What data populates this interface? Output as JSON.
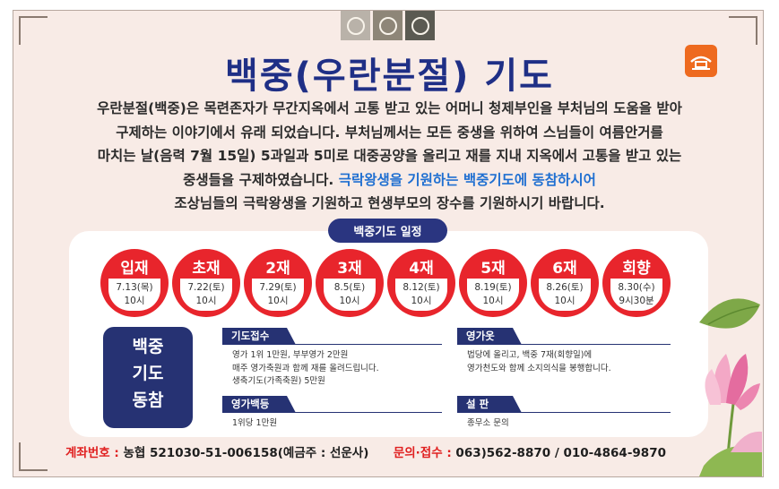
{
  "title": "백중(우란분절) 기도",
  "intro": {
    "lines": [
      "우란분절(백중)은 목련존자가 무간지옥에서 고통 받고 있는 어머니 청제부인을 부처님의 도움을 받아",
      "구제하는 이야기에서 유래 되었습니다. 부처님께서는 모든 중생을 위하여 스님들이 여름안거를",
      "마치는 날(음력 7월 15일) 5과일과 5미로 대중공양을 올리고 재를 지내 지옥에서 고통을 받고 있는"
    ],
    "line4_a": "중생들을 구제하였습니다. ",
    "line4_highlight": "극락왕생을 기원하는 백중기도에 동참하시어",
    "line5": "조상님들의 극락왕생을 기원하고 현생부모의 장수를 기원하시기 바랍니다."
  },
  "schedule": {
    "title": "백중기도 일정",
    "items": [
      {
        "name": "입재",
        "date": "7.13(목)",
        "time": "10시"
      },
      {
        "name": "초재",
        "date": "7.22(토)",
        "time": "10시"
      },
      {
        "name": "2재",
        "date": "7.29(토)",
        "time": "10시"
      },
      {
        "name": "3재",
        "date": "8.5(토)",
        "time": "10시"
      },
      {
        "name": "4재",
        "date": "8.12(토)",
        "time": "10시"
      },
      {
        "name": "5재",
        "date": "8.19(토)",
        "time": "10시"
      },
      {
        "name": "6재",
        "date": "8.26(토)",
        "time": "10시"
      },
      {
        "name": "회향",
        "date": "8.30(수)",
        "time": "9시30분"
      }
    ]
  },
  "join_box": {
    "line1": "백중",
    "line2": "기도",
    "line3": "동참"
  },
  "sections": {
    "reception": {
      "title": "기도접수",
      "lines": [
        "영가 1위 1만원, 부부영가 2만원",
        "매주 영가축원과 함께 재를 올려드립니다.",
        "생축기도(가족축원) 5만원"
      ]
    },
    "clothes": {
      "title": "영가옷",
      "lines": [
        "법당에 올리고, 백중 7재(회향일)에",
        "영가천도와 함께 소지의식을 봉행합니다."
      ]
    },
    "lamp": {
      "title": "영가백등",
      "lines": [
        "1위당 1만원"
      ]
    },
    "offering": {
      "title": "설  판",
      "lines": [
        "종무소 문의"
      ]
    }
  },
  "footer": {
    "account_label": "계좌번호 : ",
    "account_value": "농협 521030-51-006158(예금주 : 선운사)",
    "contact_label": "문의·접수 : ",
    "contact_value": "063)562-8870 / 010-4864-9870"
  },
  "colors": {
    "title": "#1f2f86",
    "circle": "#e8252c",
    "navy": "#263273",
    "highlight": "#1f6fd1",
    "label": "#e02020",
    "background": "#f8ebe6"
  },
  "icons": {
    "emblems": [
      "dharma-emblem-icon",
      "dharma-emblem-icon",
      "dharma-emblem-icon"
    ],
    "logo": "temple-logo-icon",
    "decoration": "lotus-flower-icon"
  }
}
